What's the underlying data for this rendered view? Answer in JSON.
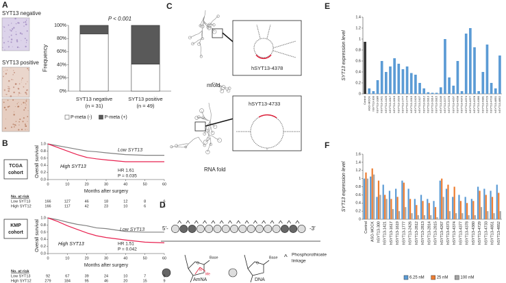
{
  "panels": {
    "letters": [
      "A",
      "B",
      "C",
      "D",
      "E",
      "F"
    ],
    "A": {
      "image_labels": [
        "SYT13 negative",
        "SYT13 positive"
      ]
    },
    "C": {
      "methods": [
        "mfold",
        "RNA fold"
      ],
      "targets": [
        "hSYT13-4378",
        "hSYT13-4733"
      ]
    },
    "D": {
      "ends": [
        "5′-",
        "-3′"
      ],
      "modifications": [
        "AmNA",
        "DNA"
      ],
      "linkage": [
        "Phosphorothioate",
        "linkage"
      ],
      "linkage_symbol": "^",
      "atoms": {
        "base": "Base",
        "oxygen": "O",
        "nitrogen": "N",
        "methyl": "Me"
      }
    }
  },
  "chart_data": [
    {
      "type": "bar",
      "stacked": true,
      "title": "P < 0.001",
      "ylabel": "Frequency",
      "categories": [
        "SYT13 negative",
        "SYT13 positive"
      ],
      "category_notes": [
        "(n = 31)",
        "(n = 49)"
      ],
      "series": [
        {
          "name": "P-meta (-)",
          "color": "#ffffff",
          "values": [
            87,
            41
          ]
        },
        {
          "name": "P-meta (+)",
          "color": "#595959",
          "values": [
            13,
            59
          ]
        }
      ],
      "ylim": [
        0,
        100
      ],
      "yticks": [
        {
          "value": 0,
          "label": "0%"
        },
        {
          "value": 20,
          "label": "20%"
        },
        {
          "value": 40,
          "label": "40%"
        },
        {
          "value": 60,
          "label": "60%"
        },
        {
          "value": 80,
          "label": "80%"
        },
        {
          "value": 100,
          "label": "100%"
        }
      ],
      "grid": false,
      "legend": "bottom"
    },
    {
      "type": "line",
      "cohort": [
        "TCGA",
        "cohort"
      ],
      "xlabel": "Months after surgery",
      "ylabel": "Overall survival",
      "x": [
        0,
        5,
        10,
        15,
        20,
        25,
        30,
        40,
        50,
        60
      ],
      "series": [
        {
          "name": "Low SYT13",
          "color": "#808080",
          "values": [
            1,
            0.95,
            0.9,
            0.85,
            0.8,
            0.78,
            0.75,
            0.7,
            0.68,
            0.68
          ]
        },
        {
          "name": "High SYT13",
          "color": "#e8204f",
          "values": [
            1,
            0.9,
            0.8,
            0.7,
            0.62,
            0.58,
            0.55,
            0.5,
            0.5,
            0.5
          ]
        }
      ],
      "annotations": [
        "HR 1.61",
        "P = 0.035"
      ],
      "xlim": [
        0,
        60
      ],
      "xticks": [
        0,
        10,
        20,
        30,
        40,
        50,
        60
      ],
      "ylim": [
        0,
        1
      ],
      "yticks": [
        {
          "value": 0,
          "label": "0.0"
        },
        0.2,
        0.4,
        0.6,
        0.8,
        {
          "value": 1,
          "label": "1.0"
        }
      ],
      "risk_table": {
        "title": "No. at risk",
        "rows": [
          {
            "name": "Low SYT13",
            "values": [
              166,
              127,
              46,
              18,
              12,
              8,
              6
            ]
          },
          {
            "name": "High SYT12",
            "values": [
              166,
              117,
              42,
              23,
              10,
              6,
              5
            ]
          }
        ]
      }
    },
    {
      "type": "line",
      "cohort": [
        "KMP",
        "cohort"
      ],
      "xlabel": "Months after surgery",
      "ylabel": "Overall survival",
      "x": [
        0,
        5,
        10,
        15,
        20,
        25,
        30,
        40,
        50,
        60
      ],
      "series": [
        {
          "name": "Low SYT13",
          "color": "#808080",
          "values": [
            1,
            0.95,
            0.88,
            0.82,
            0.78,
            0.72,
            0.7,
            0.62,
            0.6,
            0.6
          ]
        },
        {
          "name": "High SYT13",
          "color": "#e8204f",
          "values": [
            1,
            0.9,
            0.78,
            0.68,
            0.58,
            0.5,
            0.45,
            0.38,
            0.32,
            0.3
          ]
        }
      ],
      "annotations": [
        "HR 1.51",
        "P = 0.042"
      ],
      "xlim": [
        0,
        60
      ],
      "xticks": [
        0,
        10,
        20,
        30,
        40,
        50,
        60
      ],
      "ylim": [
        0,
        1
      ],
      "yticks": [
        {
          "value": 0,
          "label": "0.0"
        },
        0.2,
        0.4,
        0.6,
        0.8,
        {
          "value": 1,
          "label": "1.0"
        }
      ],
      "risk_table": {
        "title": "No. at risk",
        "rows": [
          {
            "name": "Low SYT13",
            "values": [
              92,
              67,
              39,
              24,
              10,
              7,
              6
            ]
          },
          {
            "name": "High SYT12",
            "values": [
              279,
              184,
              95,
              46,
              20,
              15,
              9
            ]
          }
        ]
      }
    },
    {
      "type": "bar",
      "ylabel": "SYT13 expression level",
      "categories": [
        "Control",
        "ASO-MOCK",
        "hSYT13-300",
        "hSYT13-1086",
        "hSYT13-1421",
        "hSYT13-1429",
        "hSYT13-1617",
        "hSYT13-1619",
        "hSYT13-1620",
        "hSYT13-1777",
        "hSYT13-1778",
        "hSYT13-1915",
        "hSYT13-2426",
        "hSYT13-2427",
        "hSYT13-2812",
        "hSYT13-2813",
        "hSYT13-2814",
        "hSYT13-2815",
        "hSYT13-3246",
        "hSYT13-3277",
        "hSYT13-3278",
        "hSYT13-4267",
        "hSYT13-4268",
        "hSYT13-4373",
        "hSYT13-4374",
        "hSYT13-4377",
        "hSYT13-4378",
        "hSYT13-4380",
        "hSYT13-4381",
        "hSYT13-4729",
        "hSYT13-4733",
        "hSYT13-4851",
        "hSYT13-4852"
      ],
      "values": [
        0.95,
        0.1,
        0.05,
        0.25,
        0.6,
        0.4,
        0.5,
        0.65,
        0.55,
        0.45,
        0.5,
        0.38,
        0.35,
        0.2,
        0.1,
        0.03,
        0.02,
        0.02,
        0.12,
        1.0,
        0.3,
        0.15,
        0.6,
        0.05,
        1.1,
        1.2,
        0.85,
        0.05,
        0.4,
        0.9,
        0.2,
        0.1,
        0.7
      ],
      "colors": [
        "#333333",
        "#5b9bd5",
        "#5b9bd5",
        "#5b9bd5",
        "#5b9bd5",
        "#5b9bd5",
        "#5b9bd5",
        "#5b9bd5",
        "#5b9bd5",
        "#5b9bd5",
        "#5b9bd5",
        "#5b9bd5",
        "#5b9bd5",
        "#5b9bd5",
        "#5b9bd5",
        "#5b9bd5",
        "#5b9bd5",
        "#5b9bd5",
        "#5b9bd5",
        "#5b9bd5",
        "#5b9bd5",
        "#5b9bd5",
        "#5b9bd5",
        "#5b9bd5",
        "#5b9bd5",
        "#5b9bd5",
        "#5b9bd5",
        "#5b9bd5",
        "#5b9bd5",
        "#5b9bd5",
        "#5b9bd5",
        "#5b9bd5",
        "#5b9bd5"
      ],
      "ylim": [
        0,
        1.4
      ],
      "yticks": [
        0,
        0.2,
        0.4,
        0.6,
        0.8,
        1,
        1.2,
        1.4
      ],
      "grid": false
    },
    {
      "type": "bar",
      "ylabel": "SYT13 expression level",
      "categories": [
        "Control",
        "ASO-MOCK",
        "hSYT13-300",
        "hSYT13-1421",
        "hSYT13-1617",
        "hSYT13-1619",
        "hSYT13-1777",
        "hSYT13-2426",
        "hSYT13-2812",
        "hSYT13-2813",
        "hSYT13-2814",
        "hSYT13-2815",
        "hSYT13-4267",
        "hSYT13-4373",
        "hSYT13-4374",
        "hSYT13-4377",
        "hSYT13-4378",
        "hSYT13-4380",
        "hSYT13-4729",
        "hSYT13-4733",
        "hSYT13-4851",
        "hSYT13-4852"
      ],
      "series": [
        {
          "name": "6.25 nM",
          "color": "#5b9bd5",
          "values": [
            1.0,
            1.05,
            0.55,
            0.85,
            0.7,
            0.75,
            0.95,
            0.75,
            0.5,
            0.6,
            0.5,
            0.45,
            0.95,
            0.75,
            0.55,
            0.6,
            0.55,
            0.5,
            0.8,
            0.75,
            0.7,
            0.85
          ]
        },
        {
          "name": "25 nM",
          "color": "#ed7d31",
          "values": [
            1.15,
            1.25,
            0.95,
            0.6,
            0.5,
            0.55,
            0.9,
            0.5,
            0.35,
            0.45,
            0.4,
            0.3,
            1.0,
            0.85,
            0.8,
            0.45,
            0.4,
            0.45,
            0.7,
            0.6,
            0.55,
            0.65
          ]
        },
        {
          "name": "100 nM",
          "color": "#a5a5a5",
          "values": [
            1.0,
            1.1,
            0.6,
            0.5,
            0.25,
            0.2,
            0.3,
            0.15,
            0.1,
            0.1,
            0.1,
            0.05,
            0.55,
            0.2,
            0.15,
            0.15,
            0.1,
            0.1,
            0.3,
            0.2,
            0.15,
            0.2
          ]
        }
      ],
      "ylim": [
        0,
        1.6
      ],
      "yticks": [
        0,
        0.2,
        0.4,
        0.6,
        0.8,
        1,
        1.2,
        1.4,
        1.6
      ],
      "grid": false,
      "legend": "bottom"
    }
  ]
}
